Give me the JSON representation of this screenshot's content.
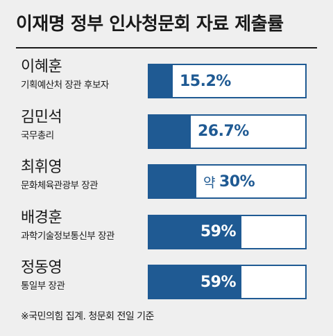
{
  "chart_data": {
    "type": "bar",
    "orientation": "horizontal",
    "title": "이재명 정부 인사청문회 자료 제출률",
    "unit": "%",
    "xlim": [
      0,
      100
    ],
    "categories": [
      {
        "name": "이혜훈",
        "role": "기획예산처 장관 후보자"
      },
      {
        "name": "김민석",
        "role": "국무총리"
      },
      {
        "name": "최휘영",
        "role": "문화체육관광부 장관"
      },
      {
        "name": "배경훈",
        "role": "과학기술정보통신부 장관"
      },
      {
        "name": "정동영",
        "role": "통일부 장관"
      }
    ],
    "values": [
      15.2,
      26.7,
      30,
      59,
      59
    ],
    "value_labels": [
      "15.2%",
      "26.7%",
      "30%",
      "59%",
      "59%"
    ],
    "value_prefixes": [
      "",
      "",
      "약",
      "",
      ""
    ],
    "bar_color": "#1f5a93",
    "background": "#efefef",
    "note": "※국민의힘 집계. 청문회 전일 기준"
  }
}
